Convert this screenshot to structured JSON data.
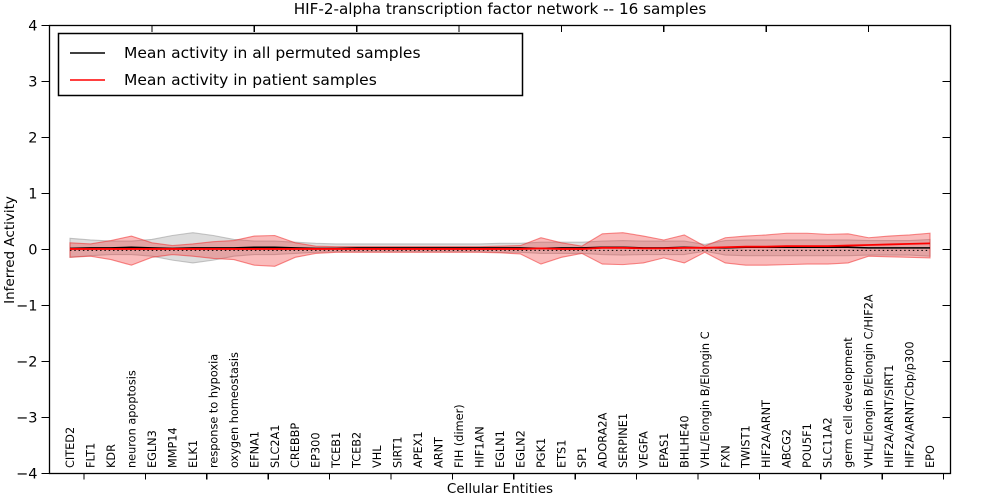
{
  "figure": {
    "background": "#ffffff"
  },
  "chart_data": {
    "type": "line",
    "title": "HIF-2-alpha transcription factor network -- 16 samples",
    "xlabel": "Cellular Entities",
    "ylabel": "Inferred Activity",
    "ylim": [
      -4,
      4
    ],
    "yticks": [
      4,
      3,
      2,
      1,
      0,
      -1,
      -2,
      -3,
      -4
    ],
    "ytick_labels": [
      "4",
      "3",
      "2",
      "1",
      "0",
      "−1",
      "−2",
      "−3",
      "−4"
    ],
    "grid": false,
    "legend_position": "upper left",
    "legend": [
      {
        "label": "Mean activity in all permuted samples",
        "color": "#000000"
      },
      {
        "label": "Mean activity in patient samples",
        "color": "#ff0000"
      }
    ],
    "categories": [
      "CITED2",
      "FLT1",
      "KDR",
      "neuron apoptosis",
      "EGLN3",
      "MMP14",
      "ELK1",
      "response to hypoxia",
      "oxygen homeostasis",
      "EFNA1",
      "SLC2A1",
      "CREBBP",
      "EP300",
      "TCEB1",
      "TCEB2",
      "VHL",
      "SIRT1",
      "APEX1",
      "ARNT",
      "FIH (dimer)",
      "HIF1AN",
      "EGLN1",
      "EGLN2",
      "PGK1",
      "ETS1",
      "SP1",
      "ADORA2A",
      "SERPINE1",
      "VEGFA",
      "EPAS1",
      "BHLHE40",
      "VHL/Elongin B/Elongin C",
      "FXN",
      "TWIST1",
      "HIF2A/ARNT",
      "ABCG2",
      "POU5F1",
      "SLC11A2",
      "germ cell development",
      "VHL/Elongin B/Elongin C/HIF2A",
      "HIF2A/ARNT/SIRT1",
      "HIF2A/ARNT/Cbp/p300",
      "EPO"
    ],
    "series": [
      {
        "name": "permuted-samples-band",
        "kind": "band",
        "color": "#999999",
        "upper": [
          0.2,
          0.17,
          0.15,
          0.15,
          0.18,
          0.25,
          0.3,
          0.25,
          0.18,
          0.15,
          0.15,
          0.13,
          0.11,
          0.1,
          0.1,
          0.1,
          0.1,
          0.1,
          0.1,
          0.1,
          0.1,
          0.11,
          0.11,
          0.13,
          0.13,
          0.13,
          0.15,
          0.16,
          0.15,
          0.15,
          0.15,
          0.09,
          0.16,
          0.17,
          0.17,
          0.17,
          0.17,
          0.17,
          0.17,
          0.16,
          0.16,
          0.16,
          0.18
        ],
        "lower": [
          -0.14,
          -0.11,
          -0.09,
          -0.09,
          -0.12,
          -0.19,
          -0.24,
          -0.19,
          -0.12,
          -0.09,
          -0.09,
          -0.07,
          -0.05,
          -0.04,
          -0.04,
          -0.04,
          -0.04,
          -0.04,
          -0.04,
          -0.04,
          -0.04,
          -0.05,
          -0.05,
          -0.07,
          -0.07,
          -0.07,
          -0.09,
          -0.1,
          -0.09,
          -0.09,
          -0.09,
          -0.03,
          -0.1,
          -0.11,
          -0.11,
          -0.11,
          -0.11,
          -0.11,
          -0.11,
          -0.1,
          -0.1,
          -0.1,
          -0.12
        ]
      },
      {
        "name": "patient-samples-band",
        "kind": "band",
        "color": "#f03030",
        "upper": [
          0.12,
          0.1,
          0.16,
          0.24,
          0.12,
          0.07,
          0.1,
          0.14,
          0.16,
          0.24,
          0.25,
          0.12,
          0.06,
          0.05,
          0.05,
          0.05,
          0.05,
          0.05,
          0.05,
          0.05,
          0.05,
          0.06,
          0.07,
          0.21,
          0.12,
          0.06,
          0.28,
          0.3,
          0.24,
          0.17,
          0.26,
          0.06,
          0.21,
          0.24,
          0.26,
          0.29,
          0.29,
          0.27,
          0.28,
          0.21,
          0.24,
          0.26,
          0.29
        ],
        "lower": [
          -0.14,
          -0.12,
          -0.18,
          -0.28,
          -0.14,
          -0.09,
          -0.12,
          -0.16,
          -0.18,
          -0.28,
          -0.3,
          -0.14,
          -0.07,
          -0.05,
          -0.05,
          -0.05,
          -0.05,
          -0.05,
          -0.05,
          -0.05,
          -0.05,
          -0.06,
          -0.08,
          -0.26,
          -0.14,
          -0.07,
          -0.26,
          -0.27,
          -0.24,
          -0.15,
          -0.24,
          -0.05,
          -0.24,
          -0.28,
          -0.28,
          -0.27,
          -0.26,
          -0.26,
          -0.24,
          -0.12,
          -0.13,
          -0.14,
          -0.15
        ]
      },
      {
        "name": "zero-baseline",
        "kind": "hline",
        "dash": "dotted",
        "color": "#000000",
        "value": -0.015
      },
      {
        "name": "permuted-samples-mean",
        "kind": "line",
        "color": "#000000",
        "values": [
          0.02,
          0.03,
          0.03,
          0.04,
          0.03,
          0.02,
          0.03,
          0.03,
          0.03,
          0.04,
          0.04,
          0.03,
          0.02,
          0.02,
          0.03,
          0.03,
          0.03,
          0.03,
          0.03,
          0.03,
          0.03,
          0.03,
          0.03,
          0.02,
          0.03,
          0.03,
          0.04,
          0.04,
          0.03,
          0.03,
          0.04,
          0.03,
          0.03,
          0.04,
          0.04,
          0.04,
          0.04,
          0.04,
          0.04,
          0.03,
          0.03,
          0.03,
          0.03
        ]
      },
      {
        "name": "patient-samples-mean",
        "kind": "line",
        "color": "#ff0000",
        "values": [
          0.01,
          0.01,
          0.01,
          0.01,
          0.01,
          0.01,
          0.01,
          0.01,
          0.01,
          0.01,
          0.01,
          0.01,
          0.01,
          0.01,
          0.01,
          0.01,
          0.01,
          0.01,
          0.01,
          0.01,
          0.01,
          0.01,
          0.01,
          0.02,
          0.01,
          0.01,
          0.03,
          0.03,
          0.02,
          0.02,
          0.03,
          0.03,
          0.04,
          0.05,
          0.05,
          0.06,
          0.06,
          0.06,
          0.07,
          0.08,
          0.09,
          0.1,
          0.11
        ]
      }
    ]
  }
}
